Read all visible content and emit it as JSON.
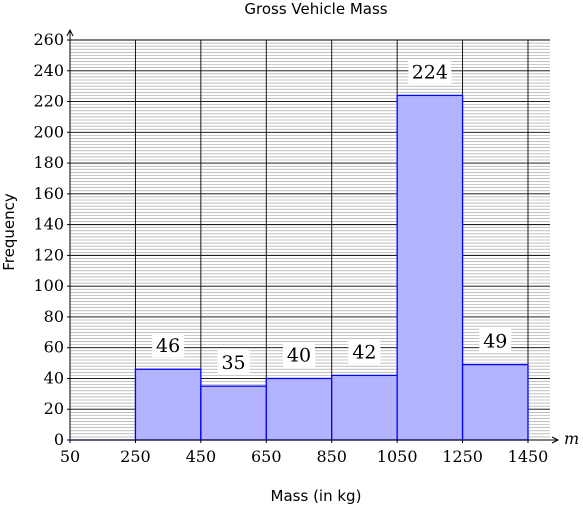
{
  "chart_data": {
    "type": "bar",
    "title": "Gross Vehicle Mass",
    "xlabel": "Mass (in kg)",
    "ylabel": "Frequency",
    "x_axis_variable": "m",
    "bin_edges": [
      50,
      250,
      450,
      650,
      850,
      1050,
      1250,
      1450
    ],
    "values": [
      0,
      46,
      35,
      40,
      42,
      224,
      49
    ],
    "data_labels": [
      "",
      "46",
      "35",
      "40",
      "42",
      "224",
      "49"
    ],
    "x_ticks": [
      "50",
      "250",
      "450",
      "650",
      "850",
      "1050",
      "1250",
      "1450"
    ],
    "y_ticks": [
      "0",
      "20",
      "40",
      "60",
      "80",
      "100",
      "120",
      "140",
      "160",
      "180",
      "200",
      "220",
      "240",
      "260"
    ],
    "xlim": [
      50,
      1450
    ],
    "ylim": [
      0,
      260
    ],
    "major_grid": true,
    "minor_grid_step": 2,
    "bar_fill": "#b3b3ff",
    "bar_stroke": "#0000ff"
  }
}
